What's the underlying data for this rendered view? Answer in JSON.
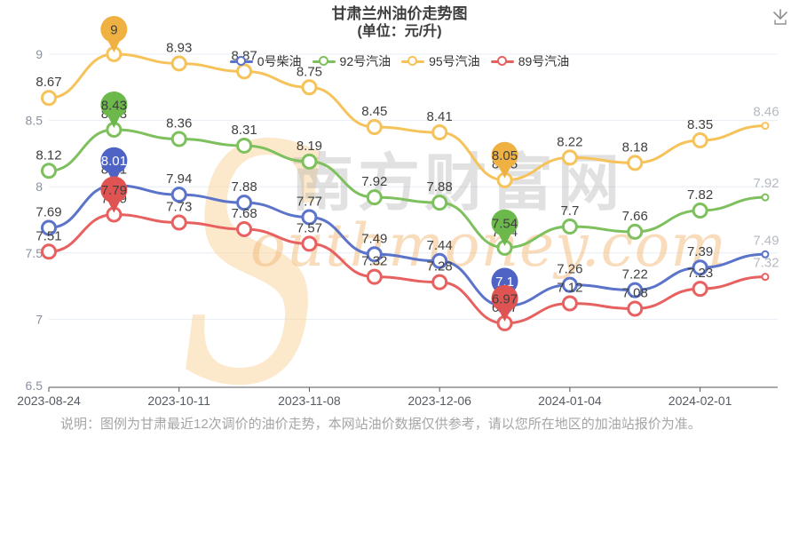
{
  "title": {
    "main": "甘肃兰州油价走势图",
    "sub": "(单位：元/升)"
  },
  "toolbar": {
    "download_icon": "download"
  },
  "note": {
    "text": "说明：图例为甘肃最近12次调价的油价走势，本网站油价数据仅供参考，请以您所在地区的加油站报价为准。"
  },
  "watermark": {
    "s": "S",
    "cjk": "南方财富网",
    "script": "outhmoney.com"
  },
  "chart_data": {
    "type": "line",
    "n_points": 12,
    "x_labels": [
      "2023-08-24",
      "2023-10-11",
      "2023-11-08",
      "2023-12-06",
      "2024-01-04",
      "2024-02-01"
    ],
    "x_label_indices": [
      0,
      2,
      4,
      6,
      8,
      10
    ],
    "ylim": [
      6.5,
      9
    ],
    "y_ticks": [
      "6.5",
      "7",
      "7.5",
      "8",
      "8.5",
      "9"
    ],
    "grid": true,
    "legend_position": "top",
    "pin_indices": [
      1,
      7
    ],
    "series": [
      {
        "name": "0号柴油",
        "color": "#5b74ca",
        "pin_color": "#4f63c5",
        "pin_text_color": "#ffffff",
        "values": [
          7.69,
          8.01,
          7.94,
          7.88,
          7.77,
          7.49,
          7.44,
          7.1,
          7.26,
          7.22,
          7.39,
          7.49
        ]
      },
      {
        "name": "92号汽油",
        "color": "#7ec05e",
        "pin_color": "#6cb84a",
        "pin_text_color": "#3f3f3f",
        "values": [
          8.12,
          8.43,
          8.36,
          8.31,
          8.19,
          7.92,
          7.88,
          7.54,
          7.7,
          7.66,
          7.82,
          7.92
        ]
      },
      {
        "name": "95号汽油",
        "color": "#f6c25a",
        "pin_color": "#f0b143",
        "pin_text_color": "#3f3f3f",
        "values": [
          8.67,
          9,
          8.93,
          8.87,
          8.75,
          8.45,
          8.41,
          8.05,
          8.22,
          8.18,
          8.35,
          8.46
        ]
      },
      {
        "name": "89号汽油",
        "color": "#e86161",
        "pin_color": "#df5353",
        "pin_text_color": "#3f3f3f",
        "values": [
          7.51,
          7.79,
          7.73,
          7.68,
          7.57,
          7.32,
          7.28,
          6.97,
          7.12,
          7.08,
          7.23,
          7.32
        ]
      }
    ],
    "label_color": "#3f3f3f",
    "last_label_color": "#b5bac1",
    "grid_color": "#e7edf5",
    "axis_color": "#555555",
    "y_label_color": "#8a919e",
    "x_label_color": "#555b63"
  }
}
